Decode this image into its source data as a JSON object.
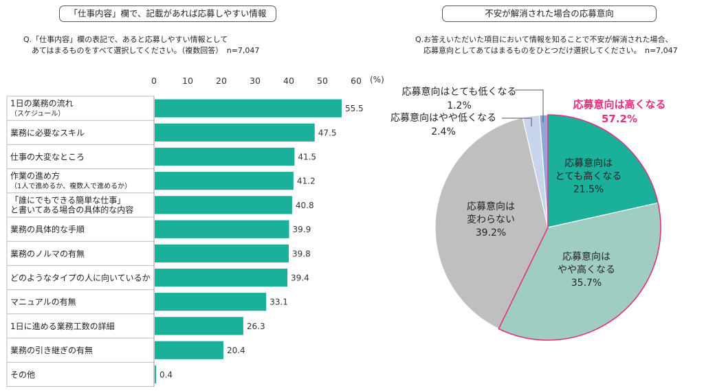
{
  "left": {
    "header": "「仕事内容」欄で、記載があれば応募しやすい情報",
    "question_lines": [
      "Q.「仕事内容」欄の表記で、あると応募しやすい情報として",
      "あてはまるものをすべて選択してください。（複数回答）　n=7,047"
    ]
  },
  "right": {
    "header": "不安が解消された場合の応募意向",
    "question_lines": [
      "Q.お答えいただいた項目において情報を知ることで不安が解消された場合、",
      "応募意向としてあてはまるものをひとつだけ選択してください。　n=7,047"
    ]
  },
  "colors": {
    "bar": "#1ab09a",
    "slice_high": "#1ab09a",
    "slice_somewhat_high": "#9fcdc2",
    "slice_no_change": "#bfbfbf",
    "slice_somewhat_low": "#c8d3ec",
    "slice_very_low": "#8fa6d6",
    "highlight": "#e0307f"
  },
  "chart_data": [
    {
      "type": "bar",
      "orientation": "horizontal",
      "unit": "(%)",
      "xlim": [
        0,
        60
      ],
      "xticks": [
        "0",
        "10",
        "20",
        "30",
        "40",
        "50",
        "60"
      ],
      "categories": [
        [
          "1日の業務の流れ",
          "（スケジュール）"
        ],
        [
          "業務に必要なスキル"
        ],
        [
          "仕事の大変なところ"
        ],
        [
          "作業の進め方",
          "（1人で進めるか、複数人で進めるか）"
        ],
        [
          "「誰にでもできる簡単な仕事」",
          "と書いてある場合の具体的な内容"
        ],
        [
          "業務の具体的な手順"
        ],
        [
          "業務のノルマの有無"
        ],
        [
          "どのようなタイプの人に向いているか"
        ],
        [
          "マニュアルの有無"
        ],
        [
          "1日に進める業務工数の詳細"
        ],
        [
          "業務の引き継ぎの有無"
        ],
        [
          "その他"
        ]
      ],
      "values": [
        55.5,
        47.5,
        41.5,
        41.2,
        40.8,
        39.9,
        39.8,
        39.4,
        33.1,
        26.3,
        20.4,
        0.4
      ],
      "value_labels": [
        "55.5",
        "47.5",
        "41.5",
        "41.2",
        "40.8",
        "39.9",
        "39.8",
        "39.4",
        "33.1",
        "26.3",
        "20.4",
        "0.4"
      ]
    },
    {
      "type": "pie",
      "slices": [
        {
          "lines": [
            "応募意向は",
            "とても高くなる",
            "21.5%"
          ],
          "value": 21.5,
          "color": "#1ab09a"
        },
        {
          "lines": [
            "応募意向は",
            "やや高くなる",
            "35.7%"
          ],
          "value": 35.7,
          "color": "#9fcdc2"
        },
        {
          "lines": [
            "応募意向は",
            "変わらない",
            "39.2%"
          ],
          "value": 39.2,
          "color": "#bfbfbf"
        },
        {
          "lines": [
            "応募意向はやや低くなる",
            "2.4%"
          ],
          "value": 2.4,
          "color": "#c8d3ec"
        },
        {
          "lines": [
            "応募意向はとても低くなる",
            "1.2%"
          ],
          "value": 1.2,
          "color": "#8fa6d6"
        }
      ],
      "highlight": {
        "label": "応募意向は高くなる",
        "value_label": "57.2%"
      }
    }
  ]
}
